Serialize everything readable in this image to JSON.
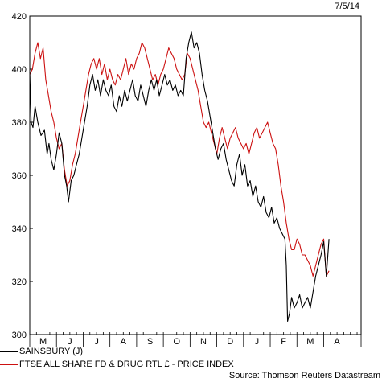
{
  "date_stamp": "7/5/14",
  "source": "Source: Thomson Reuters Datastream",
  "colors": {
    "sainsbury": "#000000",
    "ftse": "#cc1111"
  },
  "chart_data": {
    "type": "line",
    "title": "",
    "xlabel": "",
    "ylabel": "",
    "ylim": [
      300,
      420
    ],
    "yticks": [
      300,
      320,
      340,
      360,
      380,
      400,
      420
    ],
    "grid": false,
    "legend_position": "bottom-left",
    "x_month_labels": [
      "M",
      "J",
      "J",
      "A",
      "S",
      "O",
      "N",
      "D",
      "J",
      "F",
      "M",
      "A"
    ],
    "x_domain_months": [
      0,
      12.4
    ],
    "series": [
      {
        "name": "SAINSBURY (J)",
        "color": "#000000",
        "points": [
          [
            0.0,
            399
          ],
          [
            0.05,
            380
          ],
          [
            0.12,
            378
          ],
          [
            0.2,
            386
          ],
          [
            0.3,
            380
          ],
          [
            0.42,
            375
          ],
          [
            0.55,
            377
          ],
          [
            0.65,
            368
          ],
          [
            0.72,
            372
          ],
          [
            0.8,
            366
          ],
          [
            0.9,
            362
          ],
          [
            1.0,
            368
          ],
          [
            1.1,
            376
          ],
          [
            1.2,
            372
          ],
          [
            1.3,
            360
          ],
          [
            1.38,
            356
          ],
          [
            1.45,
            350
          ],
          [
            1.55,
            358
          ],
          [
            1.65,
            360
          ],
          [
            1.75,
            364
          ],
          [
            1.85,
            368
          ],
          [
            1.95,
            374
          ],
          [
            2.05,
            380
          ],
          [
            2.15,
            386
          ],
          [
            2.25,
            394
          ],
          [
            2.35,
            398
          ],
          [
            2.45,
            392
          ],
          [
            2.55,
            396
          ],
          [
            2.65,
            390
          ],
          [
            2.75,
            396
          ],
          [
            2.85,
            392
          ],
          [
            2.95,
            390
          ],
          [
            3.05,
            394
          ],
          [
            3.15,
            386
          ],
          [
            3.25,
            384
          ],
          [
            3.35,
            390
          ],
          [
            3.45,
            386
          ],
          [
            3.55,
            392
          ],
          [
            3.65,
            388
          ],
          [
            3.75,
            392
          ],
          [
            3.85,
            396
          ],
          [
            3.95,
            390
          ],
          [
            4.05,
            388
          ],
          [
            4.15,
            394
          ],
          [
            4.25,
            390
          ],
          [
            4.35,
            386
          ],
          [
            4.45,
            392
          ],
          [
            4.55,
            396
          ],
          [
            4.65,
            392
          ],
          [
            4.75,
            396
          ],
          [
            4.85,
            390
          ],
          [
            4.95,
            394
          ],
          [
            5.05,
            398
          ],
          [
            5.15,
            394
          ],
          [
            5.25,
            396
          ],
          [
            5.35,
            392
          ],
          [
            5.45,
            394
          ],
          [
            5.55,
            390
          ],
          [
            5.65,
            392
          ],
          [
            5.75,
            390
          ],
          [
            5.85,
            404
          ],
          [
            5.95,
            410
          ],
          [
            6.05,
            414
          ],
          [
            6.15,
            408
          ],
          [
            6.25,
            410
          ],
          [
            6.35,
            406
          ],
          [
            6.45,
            398
          ],
          [
            6.55,
            392
          ],
          [
            6.65,
            388
          ],
          [
            6.75,
            382
          ],
          [
            6.85,
            376
          ],
          [
            6.95,
            370
          ],
          [
            7.05,
            366
          ],
          [
            7.15,
            370
          ],
          [
            7.25,
            372
          ],
          [
            7.35,
            366
          ],
          [
            7.45,
            362
          ],
          [
            7.55,
            358
          ],
          [
            7.65,
            356
          ],
          [
            7.75,
            364
          ],
          [
            7.85,
            368
          ],
          [
            7.95,
            360
          ],
          [
            8.05,
            364
          ],
          [
            8.15,
            356
          ],
          [
            8.25,
            358
          ],
          [
            8.35,
            352
          ],
          [
            8.45,
            356
          ],
          [
            8.55,
            350
          ],
          [
            8.65,
            348
          ],
          [
            8.75,
            352
          ],
          [
            8.85,
            346
          ],
          [
            8.95,
            344
          ],
          [
            9.05,
            348
          ],
          [
            9.15,
            342
          ],
          [
            9.25,
            344
          ],
          [
            9.35,
            340
          ],
          [
            9.45,
            338
          ],
          [
            9.55,
            336
          ],
          [
            9.6,
            326
          ],
          [
            9.65,
            305
          ],
          [
            9.72,
            308
          ],
          [
            9.8,
            314
          ],
          [
            9.9,
            310
          ],
          [
            10.0,
            312
          ],
          [
            10.1,
            315
          ],
          [
            10.2,
            310
          ],
          [
            10.3,
            312
          ],
          [
            10.4,
            314
          ],
          [
            10.5,
            310
          ],
          [
            10.6,
            316
          ],
          [
            10.7,
            322
          ],
          [
            10.8,
            326
          ],
          [
            10.9,
            330
          ],
          [
            11.0,
            335
          ],
          [
            11.1,
            322
          ],
          [
            11.2,
            336
          ]
        ]
      },
      {
        "name": "FTSE ALL SHARE FD & DRUG RTL £ - PRICE INDEX",
        "color": "#cc1111",
        "points": [
          [
            0.0,
            398
          ],
          [
            0.1,
            400
          ],
          [
            0.2,
            406
          ],
          [
            0.3,
            410
          ],
          [
            0.4,
            404
          ],
          [
            0.5,
            408
          ],
          [
            0.6,
            396
          ],
          [
            0.7,
            390
          ],
          [
            0.8,
            384
          ],
          [
            0.9,
            380
          ],
          [
            1.0,
            374
          ],
          [
            1.1,
            370
          ],
          [
            1.2,
            372
          ],
          [
            1.3,
            362
          ],
          [
            1.4,
            356
          ],
          [
            1.5,
            358
          ],
          [
            1.6,
            364
          ],
          [
            1.7,
            368
          ],
          [
            1.8,
            374
          ],
          [
            1.9,
            380
          ],
          [
            2.0,
            386
          ],
          [
            2.1,
            392
          ],
          [
            2.2,
            398
          ],
          [
            2.3,
            402
          ],
          [
            2.4,
            404
          ],
          [
            2.5,
            400
          ],
          [
            2.6,
            404
          ],
          [
            2.7,
            398
          ],
          [
            2.8,
            402
          ],
          [
            2.9,
            396
          ],
          [
            3.0,
            400
          ],
          [
            3.1,
            396
          ],
          [
            3.2,
            394
          ],
          [
            3.3,
            398
          ],
          [
            3.4,
            396
          ],
          [
            3.5,
            400
          ],
          [
            3.6,
            404
          ],
          [
            3.7,
            398
          ],
          [
            3.8,
            402
          ],
          [
            3.9,
            400
          ],
          [
            4.0,
            404
          ],
          [
            4.1,
            406
          ],
          [
            4.2,
            410
          ],
          [
            4.3,
            408
          ],
          [
            4.4,
            404
          ],
          [
            4.5,
            400
          ],
          [
            4.6,
            396
          ],
          [
            4.7,
            398
          ],
          [
            4.8,
            394
          ],
          [
            4.9,
            398
          ],
          [
            5.0,
            400
          ],
          [
            5.1,
            404
          ],
          [
            5.2,
            408
          ],
          [
            5.3,
            406
          ],
          [
            5.4,
            404
          ],
          [
            5.5,
            400
          ],
          [
            5.6,
            398
          ],
          [
            5.7,
            396
          ],
          [
            5.8,
            398
          ],
          [
            5.9,
            406
          ],
          [
            6.0,
            404
          ],
          [
            6.1,
            400
          ],
          [
            6.2,
            396
          ],
          [
            6.3,
            392
          ],
          [
            6.4,
            386
          ],
          [
            6.5,
            380
          ],
          [
            6.6,
            378
          ],
          [
            6.7,
            380
          ],
          [
            6.8,
            376
          ],
          [
            6.9,
            372
          ],
          [
            7.0,
            368
          ],
          [
            7.1,
            374
          ],
          [
            7.2,
            378
          ],
          [
            7.3,
            374
          ],
          [
            7.4,
            370
          ],
          [
            7.5,
            374
          ],
          [
            7.6,
            376
          ],
          [
            7.7,
            378
          ],
          [
            7.8,
            374
          ],
          [
            7.9,
            372
          ],
          [
            8.0,
            370
          ],
          [
            8.1,
            372
          ],
          [
            8.2,
            368
          ],
          [
            8.3,
            372
          ],
          [
            8.4,
            376
          ],
          [
            8.5,
            378
          ],
          [
            8.6,
            374
          ],
          [
            8.7,
            376
          ],
          [
            8.8,
            378
          ],
          [
            8.9,
            380
          ],
          [
            9.0,
            376
          ],
          [
            9.1,
            372
          ],
          [
            9.2,
            370
          ],
          [
            9.3,
            364
          ],
          [
            9.4,
            356
          ],
          [
            9.5,
            350
          ],
          [
            9.6,
            342
          ],
          [
            9.7,
            336
          ],
          [
            9.8,
            332
          ],
          [
            9.9,
            332
          ],
          [
            10.0,
            336
          ],
          [
            10.1,
            334
          ],
          [
            10.2,
            330
          ],
          [
            10.3,
            330
          ],
          [
            10.4,
            328
          ],
          [
            10.5,
            326
          ],
          [
            10.6,
            322
          ],
          [
            10.7,
            326
          ],
          [
            10.8,
            330
          ],
          [
            10.9,
            334
          ],
          [
            11.0,
            336
          ],
          [
            11.1,
            322
          ],
          [
            11.2,
            324
          ]
        ]
      }
    ]
  }
}
